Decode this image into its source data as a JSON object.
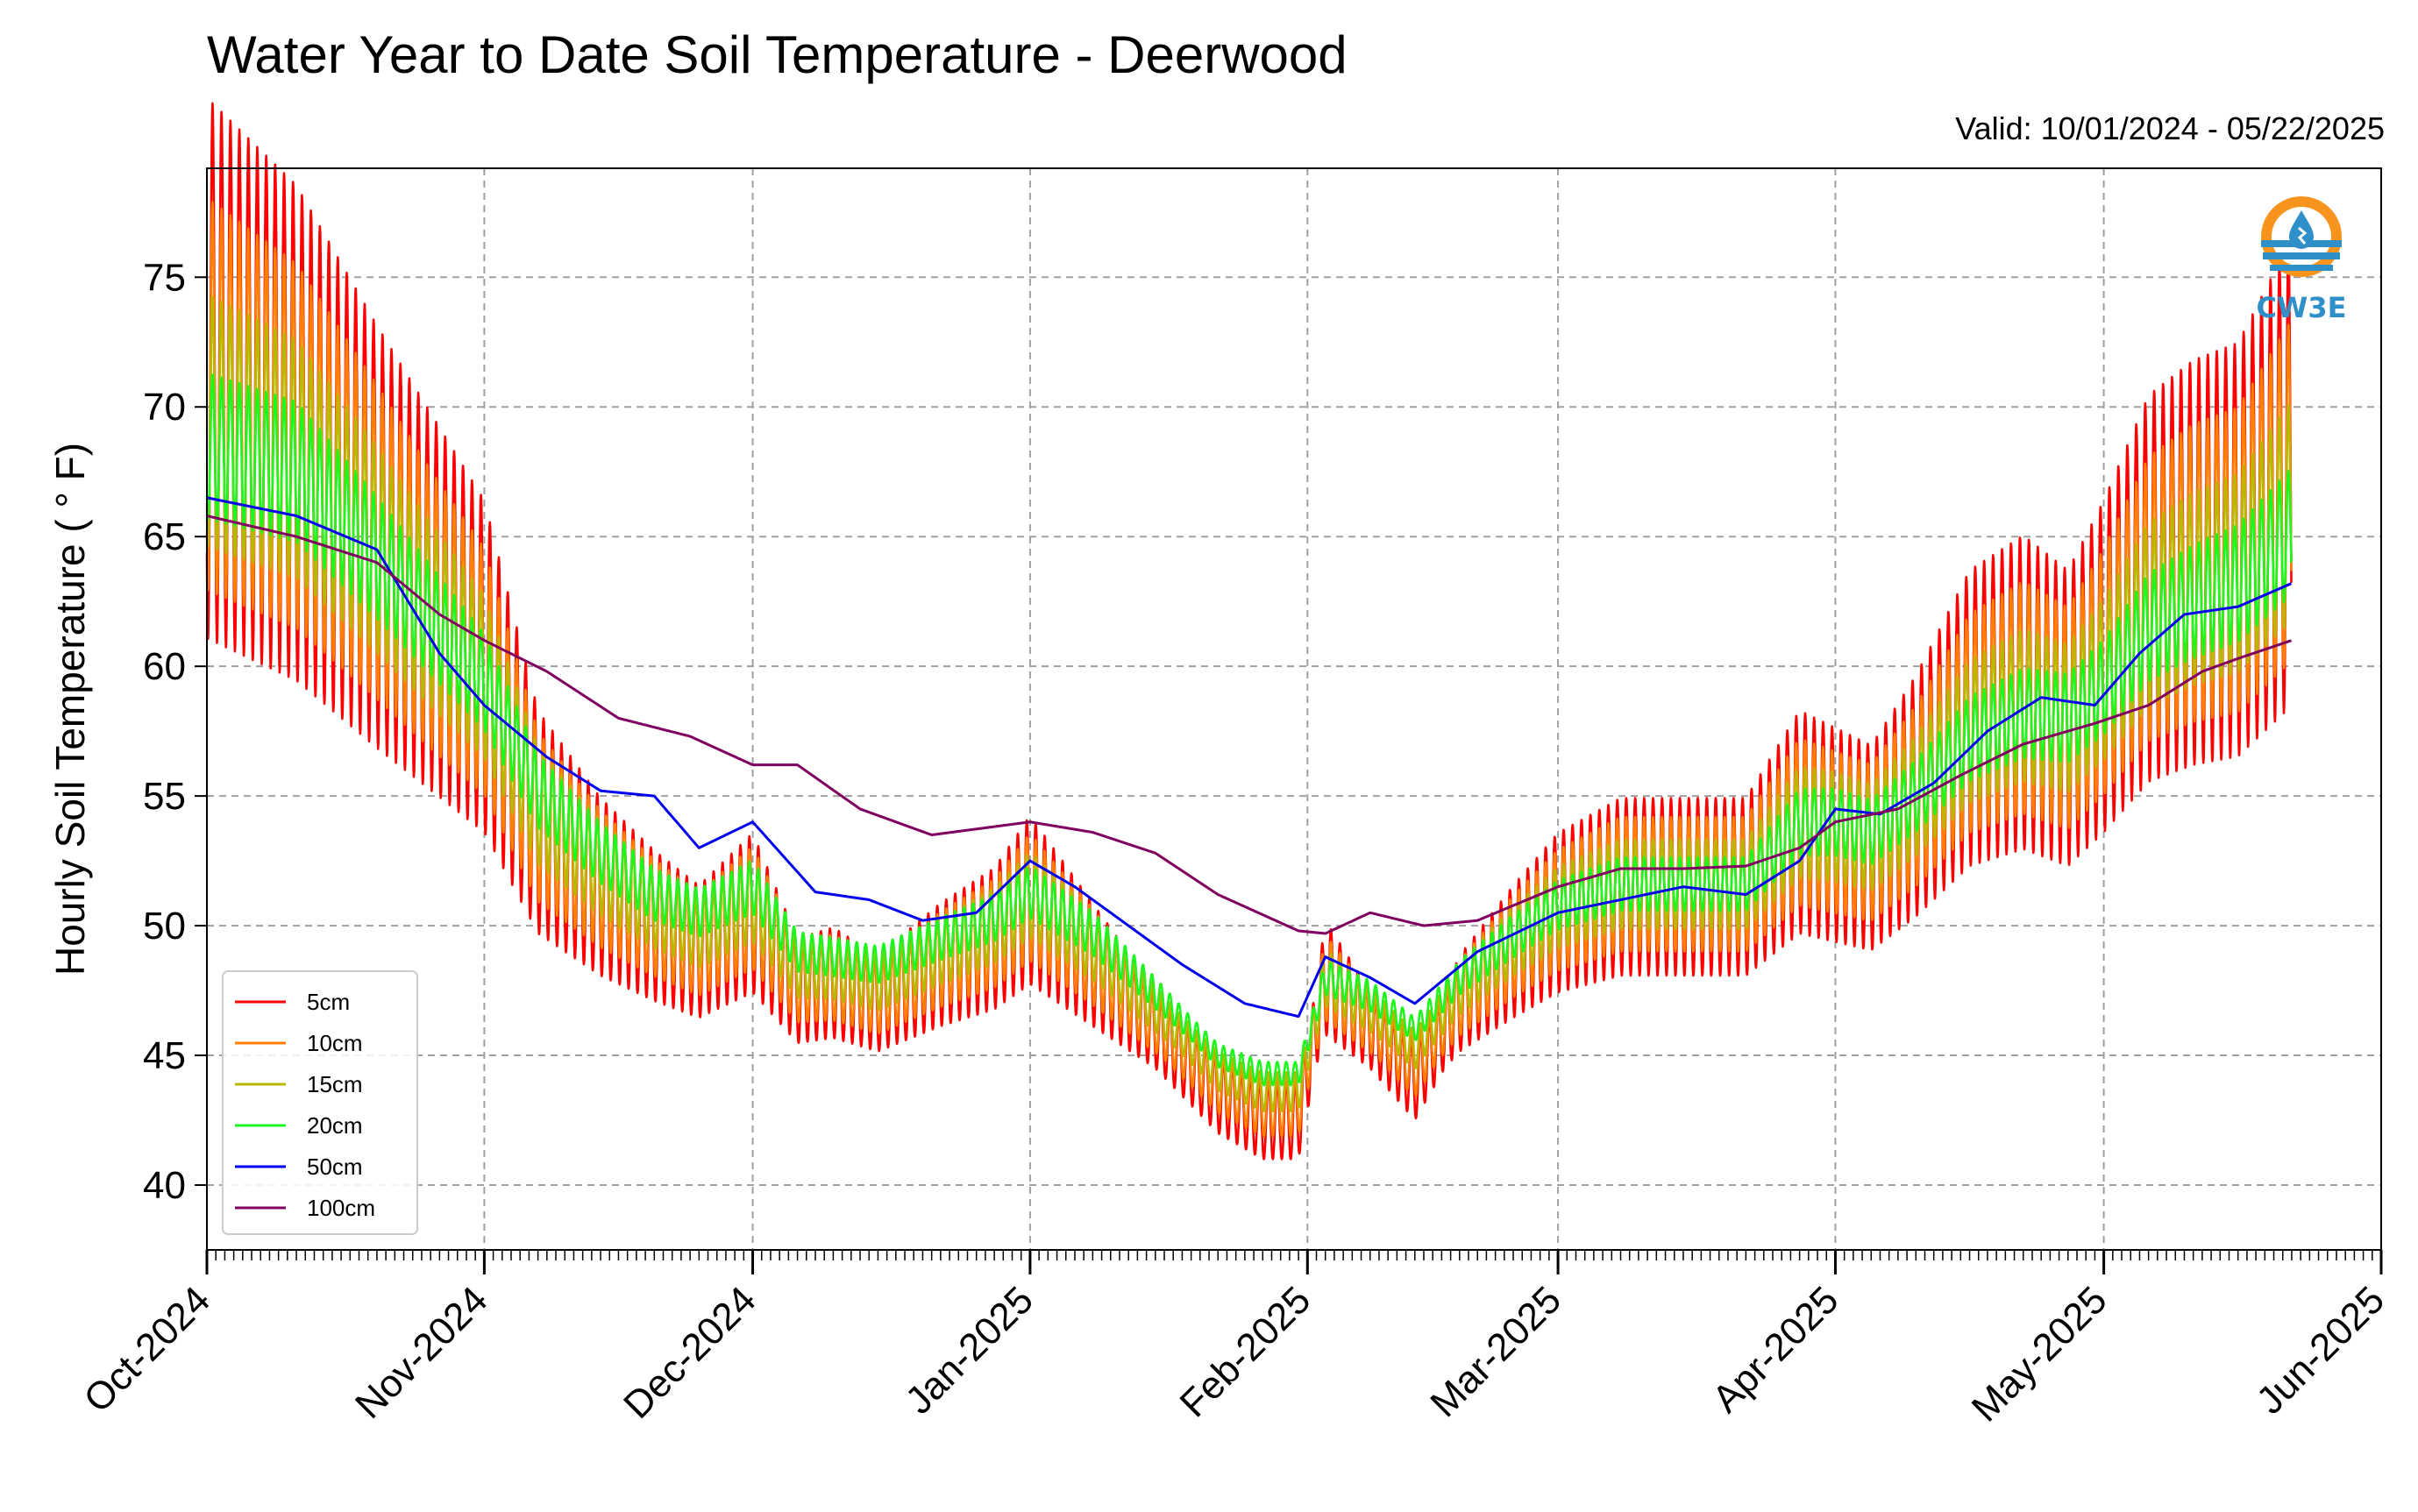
{
  "chart_data": {
    "type": "line",
    "title": "Water Year to Date Soil Temperature - Deerwood",
    "subtitle": "Valid: 10/01/2024 - 05/22/2025",
    "xlabel": "",
    "ylabel": "Hourly Soil Temperature ( ° F)",
    "xlim": [
      "2024-10-01",
      "2025-06-01"
    ],
    "ylim": [
      37.5,
      79.2
    ],
    "x_ticks": [
      "2024-10-01",
      "2024-11-01",
      "2024-12-01",
      "2025-01-01",
      "2025-02-01",
      "2025-03-01",
      "2025-04-01",
      "2025-05-01",
      "2025-06-01"
    ],
    "x_tick_labels": [
      "Oct-2024",
      "Nov-2024",
      "Dec-2024",
      "Jan-2025",
      "Feb-2025",
      "Mar-2025",
      "Apr-2025",
      "May-2025",
      "Jun-2025"
    ],
    "y_ticks": [
      40,
      45,
      50,
      55,
      60,
      65,
      70,
      75
    ],
    "y_tick_labels": [
      "40",
      "45",
      "50",
      "55",
      "60",
      "65",
      "70",
      "75"
    ],
    "grid": true,
    "legend_position": "lower-left",
    "logo_text": "CW3E",
    "colors": {
      "5cm": "#ff0000",
      "10cm": "#ff8000",
      "15cm": "#b8b800",
      "20cm": "#1ff51f",
      "50cm": "#0000ee",
      "100cm": "#800060",
      "grid": "#a0a0a0",
      "logo_orange": "#f7941d",
      "logo_blue": "#2f8fc8"
    },
    "series": [
      {
        "name": "5cm",
        "amplitude": 1.0,
        "x": [
          "2024-10-01",
          "2024-10-11",
          "2024-10-20",
          "2024-10-26",
          "2024-11-01",
          "2024-11-07",
          "2024-11-14",
          "2024-11-20",
          "2024-11-25",
          "2024-12-01",
          "2024-12-06",
          "2024-12-10",
          "2024-12-15",
          "2024-12-22",
          "2024-12-28",
          "2025-01-01",
          "2025-01-08",
          "2025-01-15",
          "2025-01-22",
          "2025-01-27",
          "2025-01-31",
          "2025-02-03",
          "2025-02-08",
          "2025-02-13",
          "2025-02-18",
          "2025-02-24",
          "2025-03-01",
          "2025-03-08",
          "2025-03-15",
          "2025-03-22",
          "2025-03-28",
          "2025-04-01",
          "2025-04-05",
          "2025-04-10",
          "2025-04-16",
          "2025-04-22",
          "2025-04-27",
          "2025-05-01",
          "2025-05-06",
          "2025-05-11",
          "2025-05-16",
          "2025-05-22"
        ],
        "y": [
          71.5,
          69,
          65,
          62.5,
          60,
          54,
          51.5,
          50,
          49,
          50.5,
          47.5,
          47.8,
          47,
          48.5,
          49.5,
          51,
          48.5,
          46,
          43.5,
          42.5,
          42.5,
          48,
          46,
          44,
          47,
          49,
          50.5,
          51.5,
          51.5,
          51.5,
          54,
          53.5,
          53,
          55,
          58,
          59,
          58,
          60,
          63,
          64,
          64.5,
          67.5
        ]
      },
      {
        "name": "10cm",
        "amplitude": 0.75,
        "x": [
          "2024-10-01",
          "2024-10-11",
          "2024-10-20",
          "2024-10-26",
          "2024-11-01",
          "2024-11-07",
          "2024-11-14",
          "2024-11-20",
          "2024-11-25",
          "2024-12-01",
          "2024-12-06",
          "2024-12-10",
          "2024-12-15",
          "2024-12-22",
          "2024-12-28",
          "2025-01-01",
          "2025-01-08",
          "2025-01-15",
          "2025-01-22",
          "2025-01-27",
          "2025-01-31",
          "2025-02-03",
          "2025-02-08",
          "2025-02-13",
          "2025-02-18",
          "2025-02-24",
          "2025-03-01",
          "2025-03-08",
          "2025-03-15",
          "2025-03-22",
          "2025-03-28",
          "2025-04-01",
          "2025-04-05",
          "2025-04-10",
          "2025-04-16",
          "2025-04-22",
          "2025-04-27",
          "2025-05-01",
          "2025-05-06",
          "2025-05-11",
          "2025-05-16",
          "2025-05-22"
        ],
        "y": [
          70.5,
          68.5,
          64.8,
          62.2,
          59.8,
          54.2,
          51.8,
          50.3,
          49.3,
          50.7,
          47.9,
          48,
          47.3,
          48.7,
          49.7,
          51.1,
          48.8,
          46.3,
          43.9,
          43,
          43,
          48,
          46.3,
          44.5,
          47.2,
          49.2,
          50.6,
          51.6,
          51.6,
          51.6,
          54,
          53.6,
          53.2,
          55,
          57.8,
          58.8,
          58,
          59.8,
          62.6,
          63.6,
          64.1,
          66.8
        ]
      },
      {
        "name": "15cm",
        "amplitude": 0.5,
        "x": [
          "2024-10-01",
          "2024-10-11",
          "2024-10-20",
          "2024-10-26",
          "2024-11-01",
          "2024-11-07",
          "2024-11-14",
          "2024-11-20",
          "2024-11-25",
          "2024-12-01",
          "2024-12-06",
          "2024-12-10",
          "2024-12-15",
          "2024-12-22",
          "2024-12-28",
          "2025-01-01",
          "2025-01-08",
          "2025-01-15",
          "2025-01-22",
          "2025-01-27",
          "2025-01-31",
          "2025-02-03",
          "2025-02-08",
          "2025-02-13",
          "2025-02-18",
          "2025-02-24",
          "2025-03-01",
          "2025-03-08",
          "2025-03-15",
          "2025-03-22",
          "2025-03-28",
          "2025-04-01",
          "2025-04-05",
          "2025-04-10",
          "2025-04-16",
          "2025-04-22",
          "2025-04-27",
          "2025-05-01",
          "2025-05-06",
          "2025-05-11",
          "2025-05-16",
          "2025-05-22"
        ],
        "y": [
          69.5,
          68,
          64.5,
          62,
          59.6,
          54.6,
          52.2,
          50.7,
          49.8,
          51,
          48.4,
          48.3,
          47.8,
          49,
          50,
          51.2,
          49.2,
          46.8,
          44.4,
          43.6,
          43.6,
          48,
          46.8,
          45.2,
          47.6,
          49.4,
          50.7,
          51.6,
          51.6,
          51.6,
          54,
          53.8,
          53.4,
          55,
          57.5,
          58.5,
          58,
          59.5,
          62,
          63,
          63.6,
          66
        ]
      },
      {
        "name": "20cm",
        "amplitude": 0.3,
        "x": [
          "2024-10-01",
          "2024-10-11",
          "2024-10-20",
          "2024-10-26",
          "2024-11-01",
          "2024-11-07",
          "2024-11-14",
          "2024-11-20",
          "2024-11-25",
          "2024-12-01",
          "2024-12-06",
          "2024-12-10",
          "2024-12-15",
          "2024-12-22",
          "2024-12-28",
          "2025-01-01",
          "2025-01-08",
          "2025-01-15",
          "2025-01-22",
          "2025-01-27",
          "2025-01-31",
          "2025-02-03",
          "2025-02-08",
          "2025-02-13",
          "2025-02-18",
          "2025-02-24",
          "2025-03-01",
          "2025-03-08",
          "2025-03-15",
          "2025-03-22",
          "2025-03-28",
          "2025-04-01",
          "2025-04-05",
          "2025-04-10",
          "2025-04-16",
          "2025-04-22",
          "2025-04-27",
          "2025-05-01",
          "2025-05-06",
          "2025-05-11",
          "2025-05-16",
          "2025-05-22"
        ],
        "y": [
          68.5,
          67.5,
          64.2,
          61.8,
          59.4,
          55.2,
          52.8,
          51.2,
          50.5,
          51.5,
          49,
          48.8,
          48.5,
          49.5,
          50.3,
          51.3,
          49.7,
          47.4,
          45,
          44.3,
          44.3,
          48,
          47.3,
          46,
          48,
          49.6,
          50.8,
          51.6,
          51.6,
          51.6,
          54,
          54,
          53.6,
          55,
          57.2,
          58.2,
          58,
          59.2,
          61.5,
          62.5,
          63.2,
          65.2
        ]
      },
      {
        "name": "50cm",
        "amplitude": 0.0,
        "x": [
          "2024-10-01",
          "2024-10-11",
          "2024-10-20",
          "2024-10-27",
          "2024-11-01",
          "2024-11-08",
          "2024-11-14",
          "2024-11-20",
          "2024-11-25",
          "2024-12-01",
          "2024-12-08",
          "2024-12-14",
          "2024-12-20",
          "2024-12-26",
          "2025-01-01",
          "2025-01-06",
          "2025-01-12",
          "2025-01-18",
          "2025-01-25",
          "2025-01-31",
          "2025-02-03",
          "2025-02-08",
          "2025-02-13",
          "2025-02-20",
          "2025-03-01",
          "2025-03-08",
          "2025-03-15",
          "2025-03-22",
          "2025-03-28",
          "2025-04-01",
          "2025-04-06",
          "2025-04-12",
          "2025-04-18",
          "2025-04-24",
          "2025-04-30",
          "2025-05-05",
          "2025-05-10",
          "2025-05-16",
          "2025-05-22"
        ],
        "y": [
          66.5,
          65.8,
          64.5,
          60.5,
          58.5,
          56.5,
          55.2,
          55,
          53,
          54,
          51.3,
          51,
          50.2,
          50.5,
          52.5,
          51.5,
          50,
          48.5,
          47,
          46.5,
          48.8,
          48,
          47,
          49,
          50.5,
          51,
          51.5,
          51.2,
          52.5,
          54.5,
          54.3,
          55.5,
          57.5,
          58.8,
          58.5,
          60.5,
          62,
          62.3,
          63.2
        ]
      },
      {
        "name": "100cm",
        "amplitude": 0.0,
        "x": [
          "2024-10-01",
          "2024-10-11",
          "2024-10-20",
          "2024-10-27",
          "2024-11-01",
          "2024-11-08",
          "2024-11-16",
          "2024-11-24",
          "2024-12-01",
          "2024-12-06",
          "2024-12-13",
          "2024-12-21",
          "2025-01-01",
          "2025-01-08",
          "2025-01-15",
          "2025-01-22",
          "2025-01-31",
          "2025-02-03",
          "2025-02-08",
          "2025-02-14",
          "2025-02-20",
          "2025-03-01",
          "2025-03-08",
          "2025-03-15",
          "2025-03-22",
          "2025-03-28",
          "2025-04-01",
          "2025-04-08",
          "2025-04-15",
          "2025-04-22",
          "2025-04-30",
          "2025-05-06",
          "2025-05-12",
          "2025-05-16",
          "2025-05-22"
        ],
        "y": [
          65.8,
          65,
          64,
          62,
          61,
          59.8,
          58,
          57.3,
          56.2,
          56.2,
          54.5,
          53.5,
          54,
          53.6,
          52.8,
          51.2,
          49.8,
          49.7,
          50.5,
          50,
          50.2,
          51.5,
          52.2,
          52.2,
          52.3,
          53,
          54,
          54.5,
          55.8,
          57,
          57.8,
          58.5,
          59.8,
          60.3,
          61
        ]
      }
    ]
  }
}
